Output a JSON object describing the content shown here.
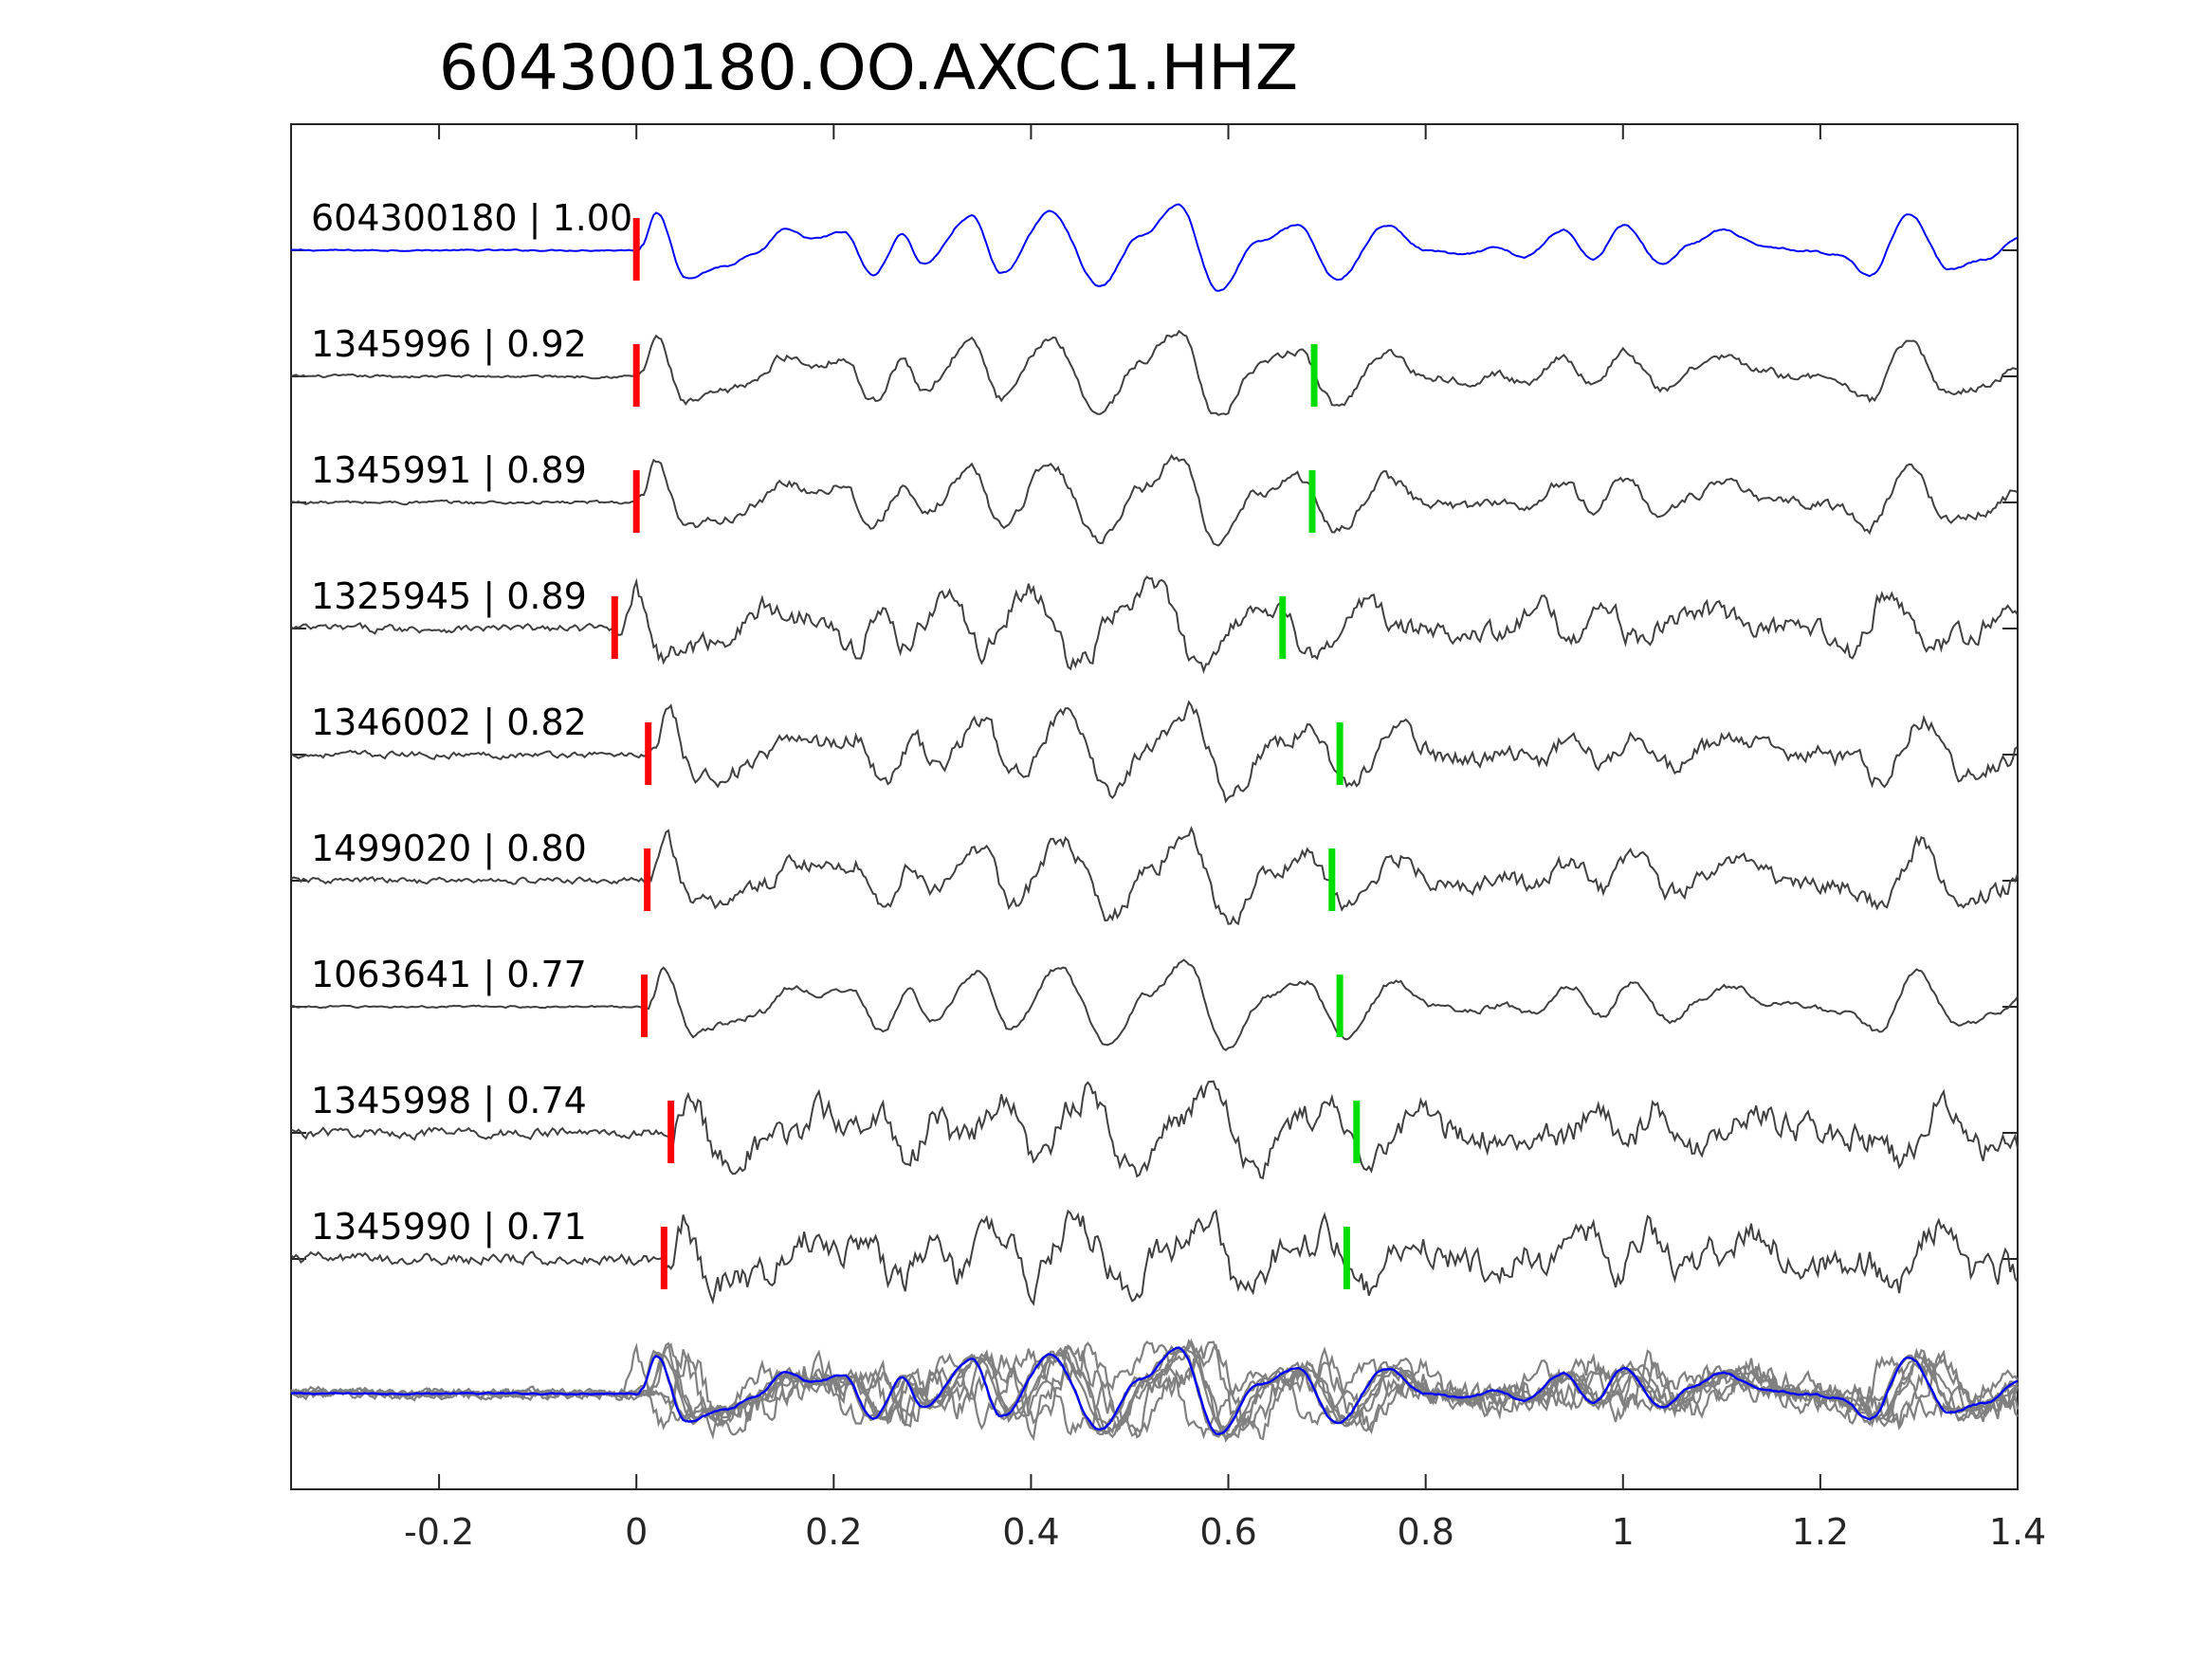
{
  "chart_data": {
    "type": "line",
    "title": "604300180.OO.AXCC1.HHZ",
    "xlabel": "",
    "ylabel": "",
    "xlim": [
      -0.35,
      1.4
    ],
    "xticks": [
      -0.2,
      0,
      0.2,
      0.4,
      0.6,
      0.8,
      1,
      1.2,
      1.4
    ],
    "xtick_labels": [
      "-0.2",
      "0",
      "0.2",
      "0.4",
      "0.6",
      "0.8",
      "1",
      "1.2",
      "1.4"
    ],
    "grid": false,
    "colors": {
      "template": "#0000ff",
      "trace": "#404040",
      "overlay": "#808080",
      "p_pick": "#ff0000",
      "s_pick": "#00dd00",
      "axes": "#262626"
    },
    "traces": [
      {
        "label": "604300180 | 1.00",
        "event_id": "604300180",
        "cc": 1.0,
        "template": true,
        "p_pick": 0.0,
        "s_pick": null,
        "noise": 0.02
      },
      {
        "label": "1345996 | 0.92",
        "event_id": "1345996",
        "cc": 0.92,
        "template": false,
        "p_pick": 0.0,
        "s_pick": 0.687,
        "noise": 0.08
      },
      {
        "label": "1345991 | 0.89",
        "event_id": "1345991",
        "cc": 0.89,
        "template": false,
        "p_pick": 0.0,
        "s_pick": 0.685,
        "noise": 0.1
      },
      {
        "label": "1325945 | 0.89",
        "event_id": "1325945",
        "cc": 0.89,
        "template": false,
        "p_pick": -0.022,
        "s_pick": 0.655,
        "noise": 0.22
      },
      {
        "label": "1346002 | 0.82",
        "event_id": "1346002",
        "cc": 0.82,
        "template": false,
        "p_pick": 0.012,
        "s_pick": 0.713,
        "noise": 0.18
      },
      {
        "label": "1499020 | 0.80",
        "event_id": "1499020",
        "cc": 0.8,
        "template": false,
        "p_pick": 0.011,
        "s_pick": 0.705,
        "noise": 0.18
      },
      {
        "label": "1063641 | 0.77",
        "event_id": "1063641",
        "cc": 0.77,
        "template": false,
        "p_pick": 0.008,
        "s_pick": 0.713,
        "noise": 0.06
      },
      {
        "label": "1345998 | 0.74",
        "event_id": "1345998",
        "cc": 0.74,
        "template": false,
        "p_pick": 0.035,
        "s_pick": 0.73,
        "noise": 0.28
      },
      {
        "label": "1345990 | 0.71",
        "event_id": "1345990",
        "cc": 0.71,
        "template": false,
        "p_pick": 0.028,
        "s_pick": 0.72,
        "noise": 0.32
      }
    ],
    "waveform_shape": {
      "description_free": true,
      "pre_p_level": 0.0,
      "peaks": [
        [
          0.005,
          0.1
        ],
        [
          0.02,
          0.85
        ],
        [
          0.05,
          -0.6
        ],
        [
          0.09,
          -0.35
        ],
        [
          0.12,
          -0.1
        ],
        [
          0.15,
          0.45
        ],
        [
          0.18,
          0.25
        ],
        [
          0.21,
          0.4
        ],
        [
          0.24,
          -0.55
        ],
        [
          0.27,
          0.35
        ],
        [
          0.29,
          -0.3
        ],
        [
          0.34,
          0.75
        ],
        [
          0.37,
          -0.5
        ],
        [
          0.42,
          0.85
        ],
        [
          0.47,
          -0.8
        ],
        [
          0.51,
          0.3
        ],
        [
          0.55,
          1.0
        ],
        [
          0.59,
          -0.9
        ],
        [
          0.63,
          0.2
        ],
        [
          0.67,
          0.55
        ],
        [
          0.71,
          -0.65
        ],
        [
          0.76,
          0.55
        ],
        [
          0.8,
          0.0
        ],
        [
          0.84,
          -0.1
        ],
        [
          0.87,
          0.05
        ],
        [
          0.9,
          -0.15
        ],
        [
          0.94,
          0.45
        ],
        [
          0.97,
          -0.2
        ],
        [
          1.0,
          0.55
        ],
        [
          1.04,
          -0.3
        ],
        [
          1.07,
          0.15
        ],
        [
          1.1,
          0.45
        ],
        [
          1.14,
          0.1
        ],
        [
          1.18,
          0.0
        ],
        [
          1.22,
          -0.1
        ],
        [
          1.25,
          -0.55
        ],
        [
          1.29,
          0.8
        ],
        [
          1.33,
          -0.4
        ],
        [
          1.37,
          -0.2
        ],
        [
          1.4,
          0.25
        ]
      ]
    }
  }
}
